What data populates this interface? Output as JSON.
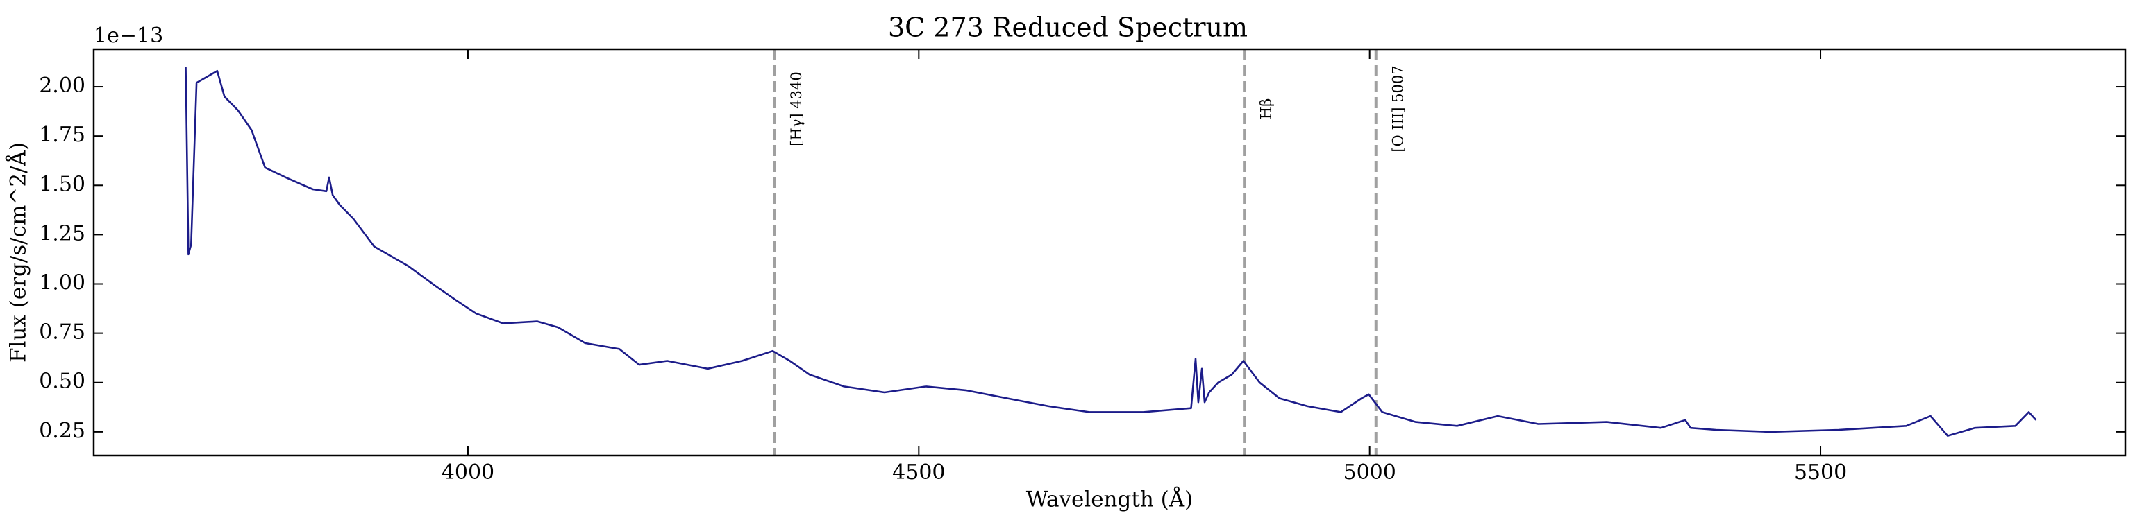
{
  "chart_data": {
    "type": "line",
    "title": "3C 273 Reduced Spectrum",
    "x_label": "Wavelength (Å)",
    "y_label": "Flux (erg/s/cm^2/Å)",
    "y_offset_label": "1e−13",
    "color": "#1c1c8a",
    "x": [
      3687,
      3690,
      3693,
      3699,
      3722,
      3730,
      3745,
      3760,
      3775,
      3798,
      3828,
      3843,
      3846,
      3850,
      3858,
      3873,
      3896,
      3934,
      3964,
      3986,
      4009,
      4039,
      4077,
      4100,
      4130,
      4168,
      4190,
      4221,
      4266,
      4304,
      4338,
      4357,
      4379,
      4417,
      4462,
      4508,
      4553,
      4598,
      4644,
      4689,
      4749,
      4802,
      4807,
      4810,
      4814,
      4817,
      4822,
      4832,
      4847,
      4860,
      4878,
      4900,
      4931,
      4968,
      4991,
      4999,
      5014,
      5051,
      5097,
      5142,
      5187,
      5263,
      5323,
      5350,
      5356,
      5384,
      5444,
      5520,
      5595,
      5622,
      5641,
      5671,
      5716,
      5731,
      5739
    ],
    "values": [
      2.1,
      1.15,
      1.2,
      2.02,
      2.08,
      1.95,
      1.88,
      1.78,
      1.59,
      1.54,
      1.48,
      1.47,
      1.54,
      1.45,
      1.4,
      1.33,
      1.19,
      1.09,
      0.99,
      0.92,
      0.85,
      0.8,
      0.81,
      0.78,
      0.7,
      0.67,
      0.59,
      0.61,
      0.57,
      0.61,
      0.66,
      0.61,
      0.54,
      0.48,
      0.45,
      0.48,
      0.46,
      0.42,
      0.38,
      0.35,
      0.35,
      0.37,
      0.62,
      0.4,
      0.57,
      0.4,
      0.45,
      0.5,
      0.54,
      0.61,
      0.5,
      0.42,
      0.38,
      0.35,
      0.42,
      0.44,
      0.35,
      0.3,
      0.28,
      0.33,
      0.29,
      0.3,
      0.27,
      0.31,
      0.27,
      0.26,
      0.25,
      0.26,
      0.28,
      0.33,
      0.23,
      0.27,
      0.28,
      0.35,
      0.31
    ],
    "xlim": [
      3585,
      5838
    ],
    "ylim": [
      0.13,
      2.19
    ],
    "xticks": [
      4000,
      4500,
      5000,
      5500
    ],
    "yticks": [
      0.25,
      {
        "value": 0.5,
        "label": "0.50"
      },
      0.75,
      {
        "value": 1,
        "label": "1.00"
      },
      1.25,
      {
        "value": 1.5,
        "label": "1.50"
      },
      1.75,
      {
        "value": 2,
        "label": "2.00"
      }
    ],
    "annotations": [
      {
        "x": 4340,
        "text": "[Hγ] 4340"
      },
      {
        "x": 4861,
        "text": "Hβ"
      },
      {
        "x": 5007,
        "text": "[O III] 5007"
      }
    ]
  }
}
